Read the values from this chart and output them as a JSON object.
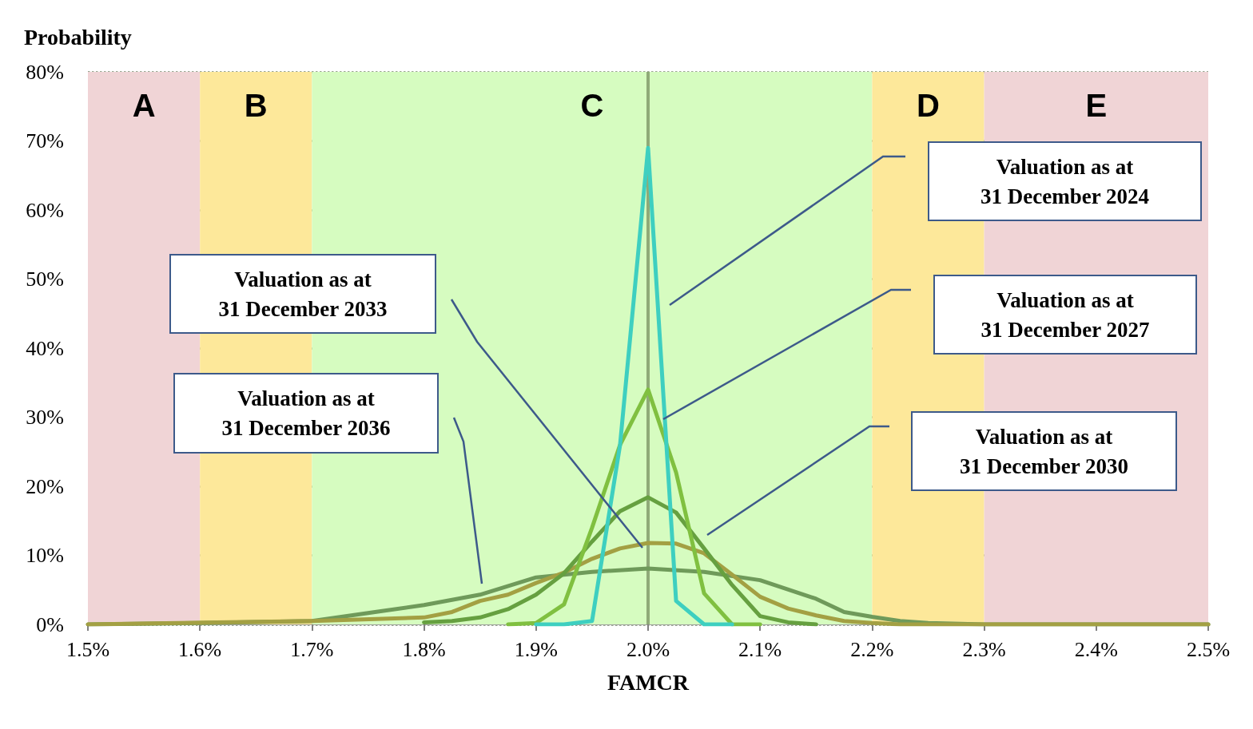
{
  "chart_data": {
    "type": "line",
    "ylabel": "Probability",
    "xlabel": "FAMCR",
    "xlim": [
      1.5,
      2.5
    ],
    "xticks": [
      {
        "value": 1.5,
        "label": "1.5%"
      },
      {
        "value": 1.6,
        "label": "1.6%"
      },
      {
        "value": 1.7,
        "label": "1.7%"
      },
      {
        "value": 1.8,
        "label": "1.8%"
      },
      {
        "value": 1.9,
        "label": "1.9%"
      },
      {
        "value": 2.0,
        "label": "2.0%"
      },
      {
        "value": 2.1,
        "label": "2.1%"
      },
      {
        "value": 2.2,
        "label": "2.2%"
      },
      {
        "value": 2.3,
        "label": "2.3%"
      },
      {
        "value": 2.4,
        "label": "2.4%"
      },
      {
        "value": 2.5,
        "label": "2.5%"
      }
    ],
    "ylim": [
      0,
      80
    ],
    "yticks": [
      {
        "value": 0,
        "label": "0%"
      },
      {
        "value": 10,
        "label": "10%"
      },
      {
        "value": 20,
        "label": "20%"
      },
      {
        "value": 30,
        "label": "30%"
      },
      {
        "value": 40,
        "label": "40%"
      },
      {
        "value": 50,
        "label": "50%"
      },
      {
        "value": 60,
        "label": "60%"
      },
      {
        "value": 70,
        "label": "70%"
      },
      {
        "value": 80,
        "label": "80%"
      }
    ],
    "grid": "y",
    "marker": "none",
    "line_style": "solid",
    "series": [
      {
        "color": "#3ecfc0",
        "x": [
          1.9,
          1.925,
          1.95,
          1.975,
          2.0,
          2.025,
          2.05,
          2.075
        ],
        "values": [
          0,
          0,
          0.5,
          26,
          69,
          3.4,
          0,
          0
        ]
      },
      {
        "color": "#80c040",
        "x": [
          1.875,
          1.9,
          1.925,
          1.95,
          1.975,
          2.0,
          2.025,
          2.05,
          2.075,
          2.1
        ],
        "values": [
          0,
          0.2,
          2.9,
          14,
          26,
          34,
          22,
          4.5,
          0,
          0
        ]
      },
      {
        "color": "#66a040",
        "x": [
          1.8,
          1.825,
          1.85,
          1.875,
          1.9,
          1.925,
          1.95,
          1.975,
          2.0,
          2.025,
          2.05,
          2.075,
          2.1,
          2.125,
          2.15
        ],
        "values": [
          0.3,
          0.5,
          1,
          2.2,
          4.3,
          7.4,
          12,
          16.4,
          18.4,
          16.2,
          11,
          5.7,
          1.2,
          0.3,
          0
        ]
      },
      {
        "color": "#a3a043",
        "x": [
          1.5,
          1.7,
          1.8,
          1.825,
          1.85,
          1.875,
          1.9,
          1.925,
          1.95,
          1.975,
          2.0,
          2.025,
          2.05,
          2.075,
          2.1,
          2.125,
          2.15,
          2.175,
          2.2,
          2.225,
          2.5
        ],
        "values": [
          0,
          0.5,
          1,
          1.8,
          3.4,
          4.3,
          6,
          7.5,
          9.5,
          11,
          11.8,
          11.7,
          10.3,
          7.2,
          4,
          2.3,
          1.3,
          0.5,
          0.2,
          0,
          0
        ]
      },
      {
        "color": "#6f9a5a",
        "x": [
          1.5,
          1.6,
          1.7,
          1.8,
          1.85,
          1.9,
          1.95,
          2.0,
          2.05,
          2.1,
          2.15,
          2.175,
          2.2,
          2.225,
          2.25,
          2.3,
          2.5
        ],
        "values": [
          0,
          0.2,
          0.5,
          2.8,
          4.3,
          6.8,
          7.6,
          8.1,
          7.6,
          6.4,
          3.7,
          1.8,
          1.1,
          0.5,
          0.2,
          0,
          0
        ]
      }
    ],
    "bands": [
      {
        "axis": "x",
        "from": 1.5,
        "to": 1.6,
        "label": "A",
        "color": "#f0d4d6"
      },
      {
        "axis": "x",
        "from": 1.6,
        "to": 1.7,
        "label": "B",
        "color": "#fde89a"
      },
      {
        "axis": "x",
        "from": 1.7,
        "to": 2.2,
        "label": "C",
        "color": "#d6fcc0"
      },
      {
        "axis": "x",
        "from": 2.2,
        "to": 2.3,
        "label": "D",
        "color": "#fde89a"
      },
      {
        "axis": "x",
        "from": 2.3,
        "to": 2.5,
        "label": "E",
        "color": "#f0d4d6"
      }
    ],
    "ref_lines": [
      {
        "axis": "x",
        "value": 2.0,
        "color": "#8faa78",
        "line_style": "solid"
      }
    ],
    "annotations": [
      "Valuation as at\n31 December 2024",
      "Valuation as at\n31 December 2027",
      "Valuation as at\n31 December 2030",
      "Valuation as at\n31 December 2033",
      "Valuation as at\n31 December 2036"
    ]
  }
}
